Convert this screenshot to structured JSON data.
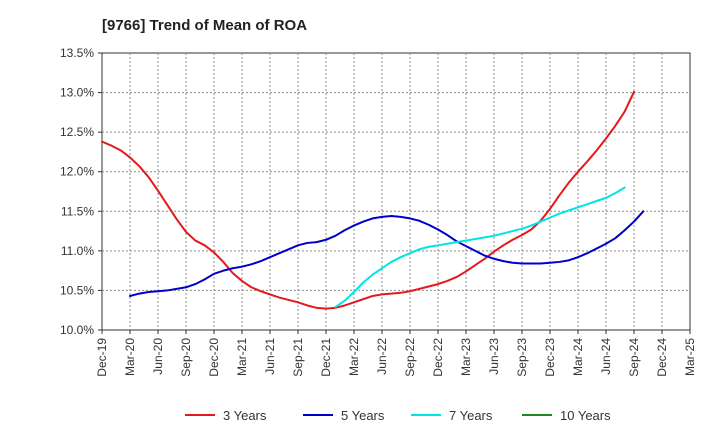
{
  "chart_data": {
    "type": "line",
    "title": "[9766]  Trend of Mean of ROA",
    "xlabel": "",
    "ylabel": "",
    "x_ticks": [
      "Dec-19",
      "Mar-20",
      "Jun-20",
      "Sep-20",
      "Dec-20",
      "Mar-21",
      "Jun-21",
      "Sep-21",
      "Dec-21",
      "Mar-22",
      "Jun-22",
      "Sep-22",
      "Dec-22",
      "Mar-23",
      "Jun-23",
      "Sep-23",
      "Dec-23",
      "Mar-24",
      "Jun-24",
      "Sep-24",
      "Dec-24",
      "Mar-25"
    ],
    "y_ticks": [
      "10.0%",
      "10.5%",
      "11.0%",
      "11.5%",
      "12.0%",
      "12.5%",
      "13.0%",
      "13.5%"
    ],
    "ylim": [
      10.0,
      13.5
    ],
    "grid": true,
    "legend_position": "bottom",
    "series": [
      {
        "name": "3 Years",
        "color": "#e31a1c",
        "start_index": 0,
        "values": [
          12.38,
          12.33,
          12.27,
          12.18,
          12.07,
          11.93,
          11.76,
          11.58,
          11.4,
          11.24,
          11.13,
          11.07,
          10.98,
          10.86,
          10.72,
          10.62,
          10.54,
          10.49,
          10.45,
          10.41,
          10.38,
          10.35,
          10.31,
          10.28,
          10.27,
          10.28,
          10.31,
          10.35,
          10.39,
          10.43,
          10.45,
          10.46,
          10.47,
          10.49,
          10.52,
          10.55,
          10.58,
          10.62,
          10.67,
          10.74,
          10.82,
          10.9,
          10.99,
          11.07,
          11.14,
          11.2,
          11.27,
          11.38,
          11.53,
          11.7,
          11.86,
          12.0,
          12.13,
          12.27,
          12.42,
          12.58,
          12.76,
          13.01
        ]
      },
      {
        "name": "5 Years",
        "color": "#0000cc",
        "start_index": 3,
        "values": [
          10.43,
          10.46,
          10.48,
          10.49,
          10.5,
          10.52,
          10.54,
          10.58,
          10.64,
          10.71,
          10.75,
          10.78,
          10.8,
          10.83,
          10.87,
          10.92,
          10.97,
          11.02,
          11.07,
          11.1,
          11.11,
          11.14,
          11.19,
          11.26,
          11.32,
          11.37,
          11.41,
          11.43,
          11.44,
          11.43,
          11.41,
          11.38,
          11.33,
          11.27,
          11.2,
          11.12,
          11.06,
          11.0,
          10.94,
          10.9,
          10.87,
          10.85,
          10.84,
          10.84,
          10.84,
          10.85,
          10.86,
          10.88,
          10.92,
          10.97,
          11.03,
          11.09,
          11.16,
          11.26,
          11.37,
          11.5
        ]
      },
      {
        "name": "7 Years",
        "color": "#00e5e5",
        "start_index": 25,
        "values": [
          10.29,
          10.37,
          10.48,
          10.6,
          10.7,
          10.78,
          10.86,
          10.92,
          10.97,
          11.02,
          11.05,
          11.07,
          11.09,
          11.11,
          11.13,
          11.15,
          11.17,
          11.19,
          11.22,
          11.25,
          11.28,
          11.32,
          11.37,
          11.42,
          11.47,
          11.51,
          11.55,
          11.59,
          11.63,
          11.67,
          11.73,
          11.8
        ]
      },
      {
        "name": "10 Years",
        "color": "#1a8a1a",
        "start_index": 0,
        "values": []
      }
    ]
  }
}
